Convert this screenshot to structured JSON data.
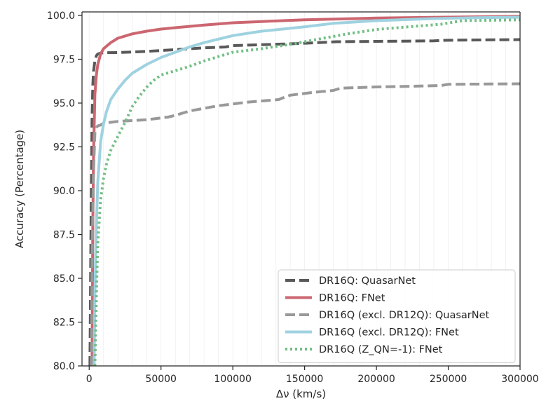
{
  "chart_data": {
    "type": "line",
    "title": "",
    "xlabel": "Δν (km/s)",
    "ylabel": "Accuracy (Percentage)",
    "xlim": [
      -5000,
      300000
    ],
    "ylim": [
      80.0,
      100.2
    ],
    "xticks": [
      0,
      50000,
      100000,
      150000,
      200000,
      250000,
      300000
    ],
    "xtick_labels": [
      "0",
      "50000",
      "100000",
      "150000",
      "200000",
      "250000",
      "300000"
    ],
    "yticks": [
      80.0,
      82.5,
      85.0,
      87.5,
      90.0,
      92.5,
      95.0,
      97.5,
      100.0
    ],
    "ytick_labels": [
      "80.0",
      "82.5",
      "85.0",
      "87.5",
      "90.0",
      "92.5",
      "95.0",
      "97.5",
      "100.0"
    ],
    "grid": "vertical minor gridlines",
    "legend_position": "lower-right",
    "series": [
      {
        "name": "DR16Q: QuasarNet",
        "color": "#595959",
        "dash": "dashed",
        "x": [
          500,
          1000,
          1500,
          2000,
          2500,
          3000,
          4000,
          5000,
          6000,
          8000,
          10000,
          20000,
          40000,
          60000,
          80000,
          95000,
          100000,
          120000,
          140000,
          160000,
          172000,
          200000,
          240000,
          248000,
          270000,
          300000
        ],
        "y": [
          80.0,
          85.0,
          90.0,
          94.0,
          96.0,
          96.8,
          97.4,
          97.7,
          97.8,
          97.85,
          97.87,
          97.88,
          97.95,
          98.05,
          98.15,
          98.2,
          98.28,
          98.33,
          98.38,
          98.45,
          98.5,
          98.52,
          98.55,
          98.58,
          98.6,
          98.62
        ]
      },
      {
        "name": "DR16Q: FNet",
        "color": "#cc6670",
        "dash": "solid",
        "x": [
          2000,
          2500,
          3000,
          4000,
          5000,
          6000,
          8000,
          10000,
          15000,
          20000,
          30000,
          40000,
          50000,
          60000,
          80000,
          100000,
          120000,
          150000,
          200000,
          250000,
          300000
        ],
        "y": [
          80.0,
          88.0,
          92.0,
          95.5,
          96.6,
          97.2,
          97.8,
          98.1,
          98.45,
          98.7,
          98.95,
          99.1,
          99.22,
          99.3,
          99.45,
          99.58,
          99.65,
          99.75,
          99.85,
          99.9,
          99.95
        ]
      },
      {
        "name": "DR16Q (excl. DR12Q): QuasarNet",
        "color": "#999999",
        "dash": "dashed",
        "x": [
          1500,
          2000,
          3000,
          4000,
          5000,
          6000,
          8000,
          10000,
          20000,
          30000,
          40000,
          55000,
          60000,
          70000,
          80000,
          90000,
          100000,
          110000,
          125000,
          132000,
          135000,
          140000,
          155000,
          170000,
          175000,
          200000,
          230000,
          245000,
          250000,
          300000
        ],
        "y": [
          80.0,
          86.0,
          91.0,
          93.3,
          93.6,
          93.7,
          93.75,
          93.85,
          93.95,
          94.0,
          94.05,
          94.2,
          94.3,
          94.55,
          94.7,
          94.85,
          94.95,
          95.05,
          95.15,
          95.2,
          95.3,
          95.45,
          95.6,
          95.72,
          95.85,
          95.92,
          95.97,
          96.0,
          96.07,
          96.1
        ]
      },
      {
        "name": "DR16Q (excl. DR12Q): FNet",
        "color": "#9fd2e0",
        "dash": "solid",
        "x": [
          3500,
          4000,
          5000,
          6000,
          8000,
          10000,
          12000,
          15000,
          20000,
          25000,
          30000,
          40000,
          50000,
          60000,
          70000,
          80000,
          100000,
          120000,
          150000,
          170000,
          200000,
          240000,
          270000,
          300000
        ],
        "y": [
          80.0,
          84.0,
          88.0,
          90.5,
          92.8,
          93.8,
          94.5,
          95.2,
          95.8,
          96.3,
          96.7,
          97.2,
          97.6,
          97.9,
          98.2,
          98.45,
          98.85,
          99.1,
          99.35,
          99.55,
          99.7,
          99.82,
          99.87,
          99.9
        ]
      },
      {
        "name": "DR16Q (Z_QN=-1): FNet",
        "color": "#73bf86",
        "dash": "dotted",
        "x": [
          4000,
          5000,
          6000,
          8000,
          10000,
          12000,
          15000,
          20000,
          25000,
          30000,
          35000,
          40000,
          45000,
          50000,
          60000,
          70000,
          80000,
          90000,
          100000,
          120000,
          140000,
          160000,
          180000,
          200000,
          230000,
          245000,
          260000,
          300000
        ],
        "y": [
          80.0,
          84.0,
          87.0,
          89.5,
          90.7,
          91.5,
          92.3,
          93.1,
          93.9,
          94.8,
          95.4,
          95.9,
          96.3,
          96.6,
          96.85,
          97.1,
          97.4,
          97.65,
          97.9,
          98.1,
          98.35,
          98.65,
          98.95,
          99.2,
          99.4,
          99.5,
          99.7,
          99.75
        ]
      }
    ]
  }
}
